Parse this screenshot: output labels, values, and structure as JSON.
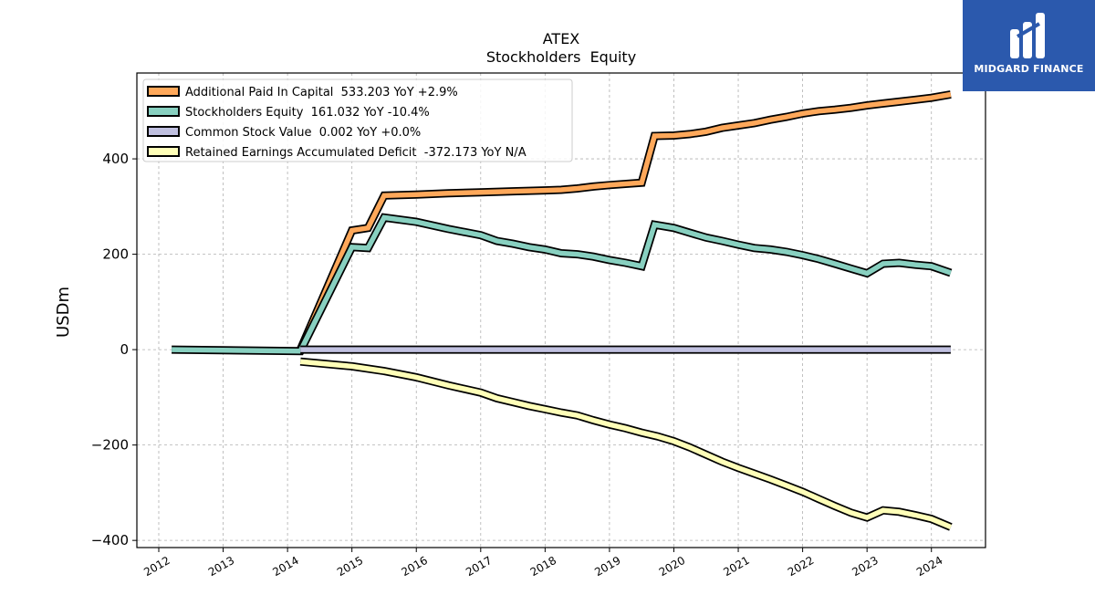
{
  "chart_data": {
    "type": "line",
    "title": "ATEX",
    "subtitle": "Stockholders  Equity",
    "ylabel": "USDm",
    "xlabel": "",
    "xlim": [
      2011.66,
      2024.84
    ],
    "ylim": [
      -415,
      580
    ],
    "yticks": [
      400,
      200,
      0,
      -200,
      -400
    ],
    "ytick_labels": [
      "400",
      "200",
      "0",
      "−200",
      "−400"
    ],
    "xticks": [
      2012,
      2013,
      2014,
      2015,
      2016,
      2017,
      2018,
      2019,
      2020,
      2021,
      2022,
      2023,
      2024
    ],
    "xtick_labels": [
      "2012",
      "2013",
      "2014",
      "2015",
      "2016",
      "2017",
      "2018",
      "2019",
      "2020",
      "2021",
      "2022",
      "2023",
      "2024"
    ],
    "grid": true,
    "legend_position": "top-left",
    "series": [
      {
        "name": "Additional Paid In Capital",
        "legend": "Additional Paid In Capital  533.203 YoY +2.9%",
        "color": "#ffa85a",
        "x": [
          2014.2,
          2015.0,
          2015.25,
          2015.5,
          2016.0,
          2016.5,
          2017.0,
          2017.5,
          2018.0,
          2018.25,
          2018.5,
          2018.75,
          2019.0,
          2019.5,
          2019.7,
          2020.0,
          2020.25,
          2020.5,
          2020.75,
          2021.0,
          2021.25,
          2021.5,
          2021.75,
          2022.0,
          2022.25,
          2022.5,
          2022.75,
          2023.0,
          2023.25,
          2023.5,
          2023.75,
          2024.0,
          2024.3
        ],
        "y": [
          0,
          250,
          255,
          323,
          325,
          328,
          330,
          332,
          334,
          335,
          338,
          342,
          345,
          350,
          448,
          449,
          452,
          457,
          465,
          470,
          475,
          482,
          488,
          495,
          500,
          503,
          507,
          512,
          516,
          520,
          524,
          528,
          535
        ]
      },
      {
        "name": "Stockholders Equity",
        "legend": "Stockholders Equity  161.032 YoY -10.4%",
        "color": "#88d0c0",
        "x": [
          2012.2,
          2014.2,
          2015.0,
          2015.25,
          2015.5,
          2016.0,
          2016.5,
          2017.0,
          2017.25,
          2017.5,
          2017.75,
          2018.0,
          2018.25,
          2018.5,
          2018.75,
          2019.0,
          2019.25,
          2019.5,
          2019.7,
          2020.0,
          2020.25,
          2020.5,
          2020.75,
          2021.0,
          2021.25,
          2021.5,
          2021.75,
          2022.0,
          2022.25,
          2022.5,
          2022.75,
          2023.0,
          2023.25,
          2023.5,
          2023.75,
          2024.0,
          2024.3
        ],
        "y": [
          0,
          -3,
          215,
          213,
          277,
          268,
          253,
          240,
          228,
          222,
          215,
          210,
          202,
          200,
          195,
          188,
          182,
          175,
          262,
          255,
          245,
          235,
          228,
          220,
          213,
          210,
          205,
          198,
          190,
          180,
          170,
          160,
          180,
          182,
          178,
          175,
          161
        ]
      },
      {
        "name": "Common Stock Value",
        "legend": "Common Stock Value  0.002 YoY +0.0%",
        "color": "#c0c0e0",
        "x": [
          2014.2,
          2024.3
        ],
        "y": [
          0,
          0
        ]
      },
      {
        "name": "Retained Earnings Accumulated Deficit",
        "legend": "Retained Earnings Accumulated Deficit  -372.173 YoY N/A",
        "color": "#ffffb8",
        "x": [
          2014.2,
          2015.0,
          2015.5,
          2016.0,
          2016.5,
          2017.0,
          2017.25,
          2017.5,
          2017.75,
          2018.0,
          2018.25,
          2018.5,
          2018.75,
          2019.0,
          2019.25,
          2019.5,
          2019.75,
          2020.0,
          2020.25,
          2020.5,
          2020.75,
          2021.0,
          2021.25,
          2021.5,
          2021.75,
          2022.0,
          2022.25,
          2022.5,
          2022.75,
          2023.0,
          2023.25,
          2023.5,
          2023.75,
          2024.0,
          2024.3
        ],
        "y": [
          -25,
          -35,
          -45,
          -58,
          -75,
          -90,
          -102,
          -110,
          -118,
          -125,
          -132,
          -138,
          -148,
          -157,
          -165,
          -174,
          -182,
          -192,
          -205,
          -220,
          -235,
          -248,
          -260,
          -272,
          -285,
          -298,
          -313,
          -328,
          -342,
          -352,
          -337,
          -340,
          -347,
          -355,
          -372
        ]
      }
    ]
  },
  "logo": {
    "text": "MIDGARD FINANCE"
  }
}
